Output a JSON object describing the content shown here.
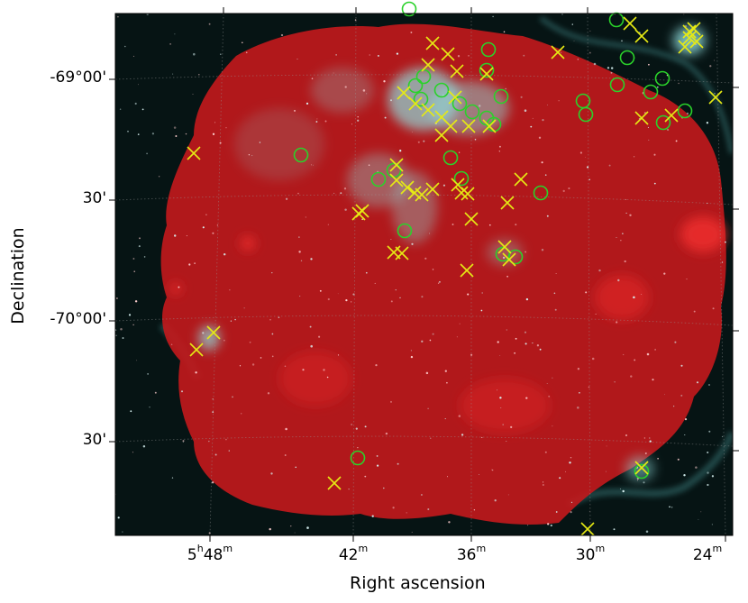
{
  "figure": {
    "xlabel": "Right ascension",
    "ylabel": "Declination",
    "y_ticks": [
      {
        "text": "-69°00'"
      },
      {
        "text": "30'"
      },
      {
        "text": "-70°00'"
      },
      {
        "text": "30'"
      }
    ],
    "x_ticks": [
      {
        "main": "5",
        "sup1": "h",
        "mid": "48",
        "sup2": "m"
      },
      {
        "main": "",
        "sup1": "",
        "mid": "42",
        "sup2": "m"
      },
      {
        "main": "",
        "sup1": "",
        "mid": "36",
        "sup2": "m"
      },
      {
        "main": "",
        "sup1": "",
        "mid": "30",
        "sup2": "m"
      },
      {
        "main": "",
        "sup1": "",
        "mid": "24",
        "sup2": "m"
      }
    ],
    "colors": {
      "background": "#061414",
      "emission": "#c4181c",
      "dust": "#8fdcdc",
      "circle_marker": "#2ad22a",
      "cross_marker": "#e6ea14"
    },
    "markers": {
      "circle_meaning": "green circle",
      "cross_meaning": "yellow cross"
    }
  }
}
